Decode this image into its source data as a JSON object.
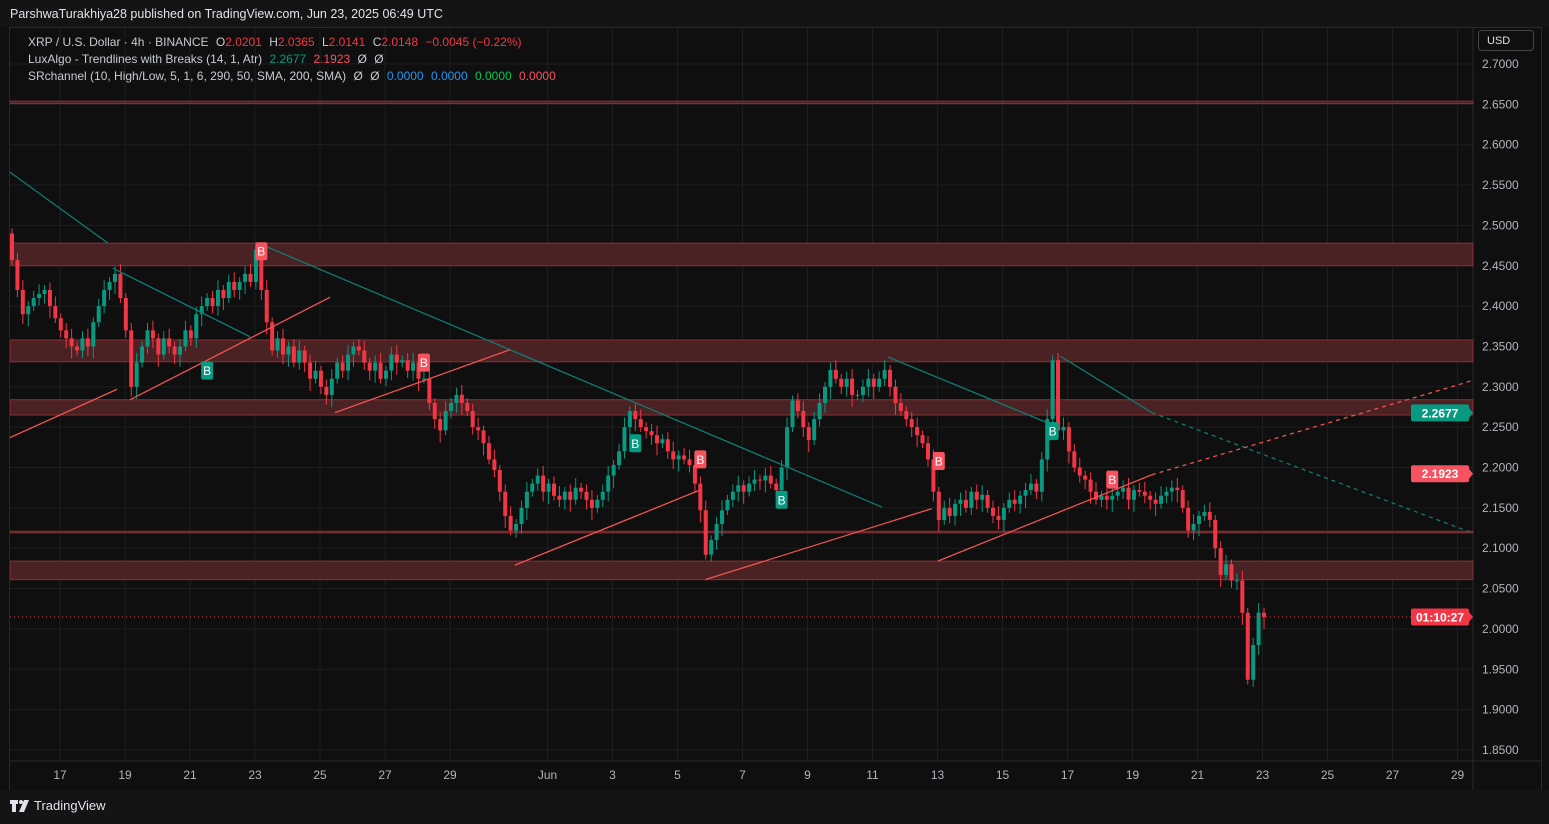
{
  "header": {
    "published": "ParshwaTurakhiya28 published on TradingView.com, Jun 23, 2025 06:49 UTC"
  },
  "legend": {
    "symbol": "XRP / U.S. Dollar · 4h · BINANCE",
    "o_label": "O",
    "o": "2.0201",
    "h_label": "H",
    "h": "2.0365",
    "l_label": "L",
    "l": "2.0141",
    "c_label": "C",
    "c": "2.0148",
    "change": "−0.0045 (−0.22%)",
    "ind1_name": "LuxAlgo - Trendlines with Breaks (14, 1, Atr)",
    "ind1_v1": "2.2677",
    "ind1_v2": "2.1923",
    "ind1_v3": "Ø",
    "ind1_v4": "Ø",
    "ind2_name": "SRchannel (10, High/Low, 5, 1, 6, 290, 50, SMA, 200, SMA)",
    "ind2_v1": "Ø",
    "ind2_v2": "Ø",
    "ind2_v3": "0.0000",
    "ind2_v4": "0.0000",
    "ind2_v5": "0.0000",
    "ind2_v6": "0.0000"
  },
  "currency_button": "USD",
  "footer": {
    "logo_text": "TradingView"
  },
  "colors": {
    "up": "#089981",
    "down": "#f23645",
    "zone": "#4a2224",
    "zone_border": "#8b2f33",
    "teal_line": "#0e7c73",
    "red_line": "#f05350",
    "bg": "#0f0f0f",
    "grid": "#1e1e1e"
  },
  "chart_data": {
    "type": "candlestick",
    "interval": "4h",
    "y_ticks": [
      "2.7000",
      "2.6500",
      "2.6000",
      "2.5500",
      "2.5000",
      "2.4500",
      "2.4000",
      "2.3500",
      "2.3000",
      "2.2500",
      "2.2000",
      "2.1500",
      "2.1000",
      "2.0500",
      "2.0000",
      "1.9500",
      "1.9000",
      "1.8500"
    ],
    "ylim": [
      1.83,
      2.72
    ],
    "x_ticks": [
      "17",
      "19",
      "21",
      "23",
      "25",
      "27",
      "29",
      "Jun",
      "3",
      "5",
      "7",
      "9",
      "11",
      "13",
      "15",
      "17",
      "19",
      "21",
      "23",
      "25",
      "27",
      "29"
    ],
    "first_open": 2.49,
    "closes": [
      2.457,
      2.42,
      2.39,
      2.4,
      2.41,
      2.415,
      2.42,
      2.4,
      2.385,
      2.37,
      2.36,
      2.35,
      2.345,
      2.36,
      2.35,
      2.38,
      2.4,
      2.42,
      2.43,
      2.44,
      2.41,
      2.37,
      2.3,
      2.33,
      2.35,
      2.37,
      2.36,
      2.34,
      2.36,
      2.35,
      2.34,
      2.35,
      2.37,
      2.36,
      2.39,
      2.4,
      2.41,
      2.4,
      2.42,
      2.41,
      2.43,
      2.42,
      2.43,
      2.44,
      2.43,
      2.47,
      2.42,
      2.38,
      2.345,
      2.36,
      2.34,
      2.35,
      2.33,
      2.345,
      2.33,
      2.31,
      2.32,
      2.3,
      2.29,
      2.31,
      2.33,
      2.32,
      2.34,
      2.35,
      2.345,
      2.33,
      2.32,
      2.33,
      2.31,
      2.32,
      2.34,
      2.33,
      2.333,
      2.32,
      2.33,
      2.31,
      2.31,
      2.28,
      2.26,
      2.246,
      2.27,
      2.28,
      2.29,
      2.28,
      2.27,
      2.25,
      2.246,
      2.23,
      2.21,
      2.197,
      2.17,
      2.14,
      2.122,
      2.13,
      2.15,
      2.17,
      2.18,
      2.19,
      2.17,
      2.18,
      2.165,
      2.16,
      2.17,
      2.16,
      2.175,
      2.17,
      2.16,
      2.15,
      2.16,
      2.17,
      2.19,
      2.203,
      2.22,
      2.25,
      2.27,
      2.26,
      2.25,
      2.245,
      2.24,
      2.23,
      2.235,
      2.22,
      2.21,
      2.215,
      2.21,
      2.203,
      2.18,
      2.147,
      2.092,
      2.11,
      2.13,
      2.147,
      2.16,
      2.17,
      2.178,
      2.17,
      2.18,
      2.185,
      2.184,
      2.19,
      2.18,
      2.172,
      2.2,
      2.25,
      2.283,
      2.27,
      2.25,
      2.234,
      2.26,
      2.28,
      2.3,
      2.321,
      2.31,
      2.3,
      2.31,
      2.29,
      2.29,
      2.3,
      2.31,
      2.3,
      2.31,
      2.321,
      2.3,
      2.28,
      2.27,
      2.26,
      2.25,
      2.24,
      2.23,
      2.21,
      2.17,
      2.135,
      2.15,
      2.14,
      2.155,
      2.16,
      2.15,
      2.17,
      2.16,
      2.166,
      2.15,
      2.14,
      2.135,
      2.15,
      2.16,
      2.155,
      2.165,
      2.172,
      2.18,
      2.17,
      2.21,
      2.26,
      2.333,
      2.246,
      2.25,
      2.22,
      2.2,
      2.19,
      2.185,
      2.17,
      2.16,
      2.165,
      2.16,
      2.165,
      2.17,
      2.175,
      2.16,
      2.172,
      2.17,
      2.165,
      2.16,
      2.155,
      2.165,
      2.17,
      2.175,
      2.172,
      2.15,
      2.122,
      2.13,
      2.14,
      2.145,
      2.135,
      2.1,
      2.067,
      2.08,
      2.06,
      2.06,
      2.02,
      1.937,
      1.98,
      2.0201,
      2.0148
    ],
    "sr_zones": [
      [
        2.651,
        2.654
      ],
      [
        2.45,
        2.478
      ],
      [
        2.331,
        2.358
      ],
      [
        2.265,
        2.284
      ],
      [
        2.119,
        2.121
      ],
      [
        2.061,
        2.084
      ]
    ],
    "trendlines_down": [
      {
        "from": [
          -0.4,
          2.566
        ],
        "to": [
          17.7,
          2.478
        ]
      },
      {
        "from": [
          18.6,
          2.447
        ],
        "to": [
          43.9,
          2.362
        ]
      },
      {
        "from": [
          46.1,
          2.476
        ],
        "to": [
          160.5,
          2.151
        ]
      },
      {
        "from": [
          161.6,
          2.337
        ],
        "to": [
          191.9,
          2.253
        ]
      },
      {
        "from": [
          193.4,
          2.338
        ],
        "to": [
          210.3,
          2.268
        ],
        "extend_to": [
          269,
          2.12
        ]
      }
    ],
    "trendlines_up": [
      {
        "from": [
          -0.4,
          2.237
        ],
        "to": [
          19.4,
          2.297
        ]
      },
      {
        "from": [
          21.8,
          2.284
        ],
        "to": [
          58.7,
          2.411
        ]
      },
      {
        "from": [
          59.6,
          2.268
        ],
        "to": [
          91.9,
          2.346
        ]
      },
      {
        "from": [
          92.8,
          2.079
        ],
        "to": [
          126.9,
          2.172
        ]
      },
      {
        "from": [
          127.9,
          2.061
        ],
        "to": [
          169.7,
          2.149
        ]
      },
      {
        "from": [
          170.8,
          2.084
        ],
        "to": [
          210.3,
          2.191
        ],
        "extend_to": [
          269.6,
          2.308
        ]
      }
    ],
    "break_labels": [
      {
        "text": "B",
        "type": "bearish",
        "index": 46,
        "price": 2.468
      },
      {
        "text": "B",
        "type": "bearish",
        "index": 76,
        "price": 2.33
      },
      {
        "text": "B",
        "type": "bearish",
        "index": 127,
        "price": 2.21
      },
      {
        "text": "B",
        "type": "bearish",
        "index": 171,
        "price": 2.208
      },
      {
        "text": "B",
        "type": "bearish",
        "index": 203,
        "price": 2.185
      },
      {
        "text": "B",
        "type": "bullish",
        "index": 36,
        "price": 2.32
      },
      {
        "text": "B",
        "type": "bullish",
        "index": 115,
        "price": 2.23
      },
      {
        "text": "B",
        "type": "bullish",
        "index": 142,
        "price": 2.16
      },
      {
        "text": "B",
        "type": "bullish",
        "index": 192,
        "price": 2.245
      }
    ],
    "price_labels": [
      {
        "text": "2.2677",
        "price": 2.2677,
        "color": "#089981"
      },
      {
        "text": "2.1923",
        "price": 2.1923,
        "color": "#f7525f"
      },
      {
        "text": "01:10:27",
        "price": 2.0148,
        "color": "#f23645"
      }
    ],
    "last_price": 2.0148
  }
}
